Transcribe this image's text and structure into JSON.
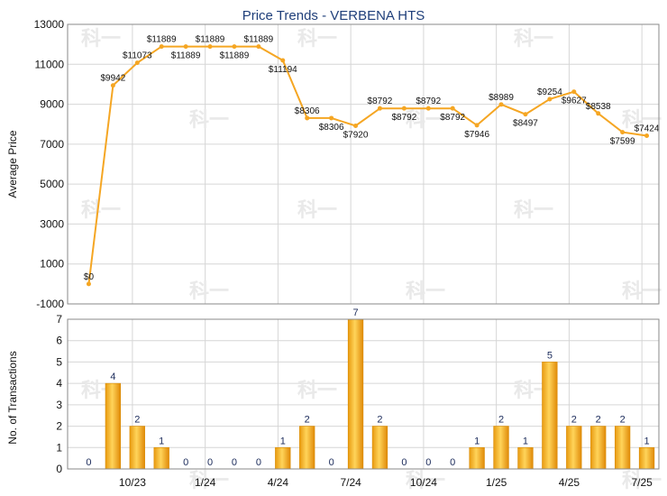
{
  "chart_data": [
    {
      "type": "line",
      "title": "Price Trends - VERBENA HTS",
      "ylabel": "Average Price",
      "xlabel": "",
      "ylim": [
        -1000,
        13000
      ],
      "yticks": [
        -1000,
        1000,
        3000,
        5000,
        7000,
        9000,
        11000,
        13000
      ],
      "x_tick_labels": [
        "10/23",
        "1/24",
        "4/24",
        "7/24",
        "10/24",
        "1/25",
        "4/25",
        "7/25"
      ],
      "series": [
        {
          "color": "#f5a623",
          "points": [
            {
              "x": 0,
              "y": 0,
              "label": "$0"
            },
            {
              "x": 1,
              "y": 9942,
              "label": "$9942"
            },
            {
              "x": 2,
              "y": 11073,
              "label": "$11073"
            },
            {
              "x": 3,
              "y": 11889,
              "label": "$11889"
            },
            {
              "x": 4,
              "y": 11889,
              "label": "$11889"
            },
            {
              "x": 5,
              "y": 11889,
              "label": "$11889"
            },
            {
              "x": 6,
              "y": 11889,
              "label": "$11889"
            },
            {
              "x": 7,
              "y": 11889,
              "label": "$11889"
            },
            {
              "x": 8,
              "y": 11194,
              "label": "$11194"
            },
            {
              "x": 9,
              "y": 8306,
              "label": "$8306"
            },
            {
              "x": 10,
              "y": 8306,
              "label": "$8306"
            },
            {
              "x": 11,
              "y": 7920,
              "label": "$7920"
            },
            {
              "x": 12,
              "y": 8792,
              "label": "$8792"
            },
            {
              "x": 13,
              "y": 8792,
              "label": "$8792"
            },
            {
              "x": 14,
              "y": 8792,
              "label": "$8792"
            },
            {
              "x": 15,
              "y": 8792,
              "label": "$8792"
            },
            {
              "x": 16,
              "y": 7946,
              "label": "$7946"
            },
            {
              "x": 17,
              "y": 8989,
              "label": "$8989"
            },
            {
              "x": 18,
              "y": 8497,
              "label": "$8497"
            },
            {
              "x": 19,
              "y": 9254,
              "label": "$9254"
            },
            {
              "x": 20,
              "y": 9627,
              "label": "$9627"
            },
            {
              "x": 21,
              "y": 8538,
              "label": "$8538"
            },
            {
              "x": 22,
              "y": 7599,
              "label": "$7599"
            },
            {
              "x": 23,
              "y": 7424,
              "label": "$7424"
            }
          ]
        }
      ]
    },
    {
      "type": "bar",
      "ylabel": "No. of Transactions",
      "ylim": [
        0,
        7
      ],
      "yticks": [
        0,
        1,
        2,
        3,
        4,
        5,
        6,
        7
      ],
      "x_tick_labels": [
        "10/23",
        "1/24",
        "4/24",
        "7/24",
        "10/24",
        "1/25",
        "4/25",
        "7/25"
      ],
      "bar_color": "#f0a818",
      "values": [
        0,
        4,
        2,
        1,
        0,
        0,
        0,
        0,
        1,
        2,
        0,
        7,
        2,
        0,
        0,
        0,
        1,
        2,
        1,
        5,
        2,
        2,
        2,
        1
      ]
    }
  ],
  "watermark": "科一"
}
